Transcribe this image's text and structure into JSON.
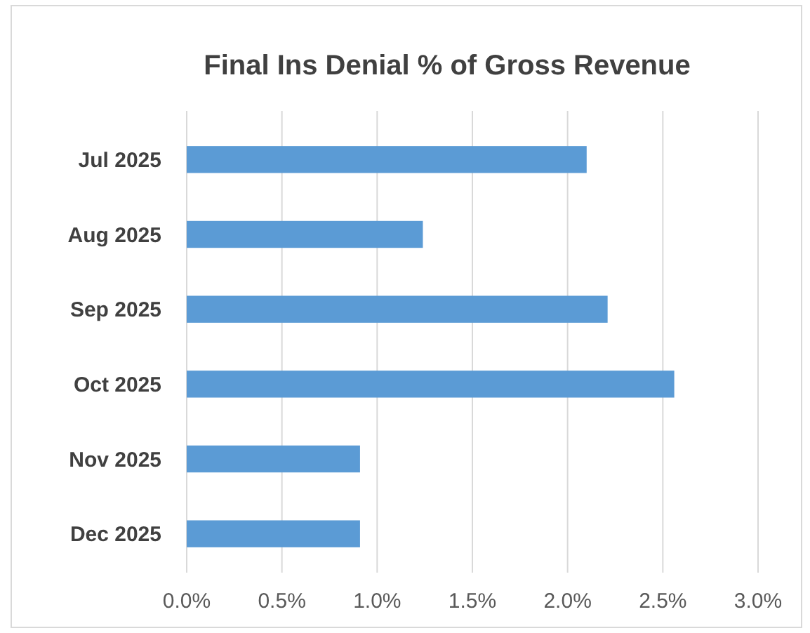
{
  "chart_data": {
    "type": "bar",
    "orientation": "horizontal",
    "title": "Final Ins Denial % of Gross Revenue",
    "categories": [
      "Jul 2025",
      "Aug 2025",
      "Sep 2025",
      "Oct 2025",
      "Nov 2025",
      "Dec 2025"
    ],
    "values": [
      2.1,
      1.24,
      2.21,
      2.56,
      0.91,
      0.91
    ],
    "color": "#5b9bd5",
    "xlim": [
      0,
      3
    ],
    "xticks": [
      {
        "value": 0,
        "label": "0.0%"
      },
      {
        "value": 0.5,
        "label": "0.5%"
      },
      {
        "value": 1,
        "label": "1.0%"
      },
      {
        "value": 1.5,
        "label": "1.5%"
      },
      {
        "value": 2,
        "label": "2.0%"
      },
      {
        "value": 2.5,
        "label": "2.5%"
      },
      {
        "value": 3,
        "label": "3.0%"
      }
    ],
    "grid": "x"
  }
}
